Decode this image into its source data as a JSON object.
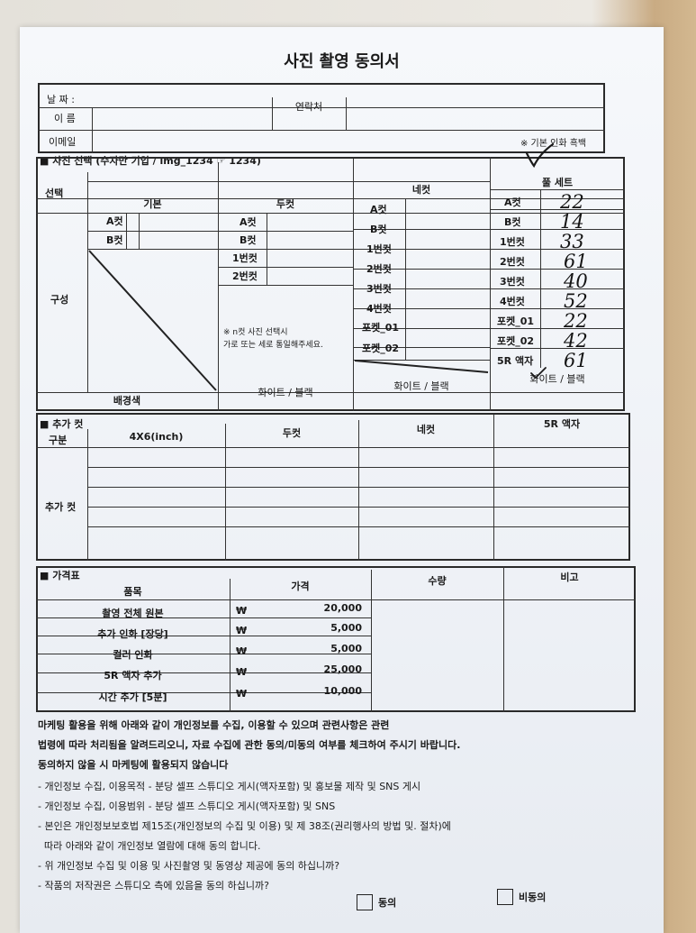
{
  "title": "사진 촬영 동의서",
  "info": {
    "date_label": "날 짜 :",
    "name_label": "이 름",
    "contact_label": "연락처",
    "email_label": "이메일"
  },
  "note_basic": "※ 기본 인화 흑백",
  "selection": {
    "section_title": "■ 사진 선택 (수자만 기입 / img_1234 ☞ 1234)",
    "select_label": "선택",
    "col_basic": "기본",
    "col_two": "두컷",
    "col_four": "네컷",
    "col_full": "풀 세트",
    "composition_label": "구성",
    "basic_items": [
      "A컷",
      "B컷"
    ],
    "two_items": [
      "A컷",
      "B컷",
      "1번컷",
      "2번컷"
    ],
    "two_note_line1": "※ n컷 사진 선택시",
    "two_note_line2": "가로 또는 세로 통일해주세요.",
    "four_items": [
      "A컷",
      "B컷",
      "1번컷",
      "2번컷",
      "3번컷",
      "4번컷",
      "포켓_01",
      "포켓_02"
    ],
    "full_items": [
      {
        "label": "A컷",
        "value": "22"
      },
      {
        "label": "B컷",
        "value": "14"
      },
      {
        "label": "1번컷",
        "value": "33"
      },
      {
        "label": "2번컷",
        "value": "61"
      },
      {
        "label": "3번컷",
        "value": "40"
      },
      {
        "label": "4번컷",
        "value": "52"
      },
      {
        "label": "포켓_01",
        "value": "22"
      },
      {
        "label": "포켓_02",
        "value": "42"
      },
      {
        "label": "5R 액자",
        "value": "61"
      }
    ],
    "bg_label": "배경색",
    "bg_two": "화이트 / 블랙",
    "bg_four": "화이트 / 블랙",
    "bg_full": "화이트 / 블랙"
  },
  "extra": {
    "section_title": "■ 추가 컷",
    "col_type": "구분",
    "col_4x6": "4X6(inch)",
    "col_two": "두컷",
    "col_four": "네컷",
    "col_5r": "5R 액자",
    "row_label": "추가 컷"
  },
  "price": {
    "section_title": "■ 가격표",
    "col_item": "품목",
    "col_price": "가격",
    "col_qty": "수량",
    "col_note": "비고",
    "currency": "₩",
    "rows": [
      {
        "item": "촬영 전체 원본",
        "price": "20,000"
      },
      {
        "item": "추가 인화 [장당]",
        "price": "5,000"
      },
      {
        "item": "컬러 인화",
        "price": "5,000"
      },
      {
        "item": "5R 액자 추가",
        "price": "25,000"
      },
      {
        "item": "시간 추가 [5분]",
        "price": "10,000"
      }
    ]
  },
  "consent": {
    "bold_lines": [
      "마케팅 활용을 위해 아래와 같이 개인정보를 수집, 이용할 수 있으며 관련사항은 관련",
      "법령에 따라 처리됨을 알려드리오니, 자료 수집에 관한 동의/미동의 여부를 체크하여 주시기 바랍니다.",
      "동의하지 않을 시 마케팅에 활용되지 않습니다"
    ],
    "lines": [
      "- 개인정보 수집, 이용목적 - 분당 셀프 스튜디오 게시(액자포함) 및 홍보물 제작 및 SNS 게시",
      "- 개인정보 수집, 이용범위 - 분당 셀프 스튜디오 게시(액자포함) 및 SNS",
      "- 본인은 개인정보보호법 제15조(개인정보의 수집 및 이용) 및 제 38조(권리행사의 방법 및. 절차)에",
      "  따라 아래와 같이 개인정보 열람에 대해 동의 합니다.",
      "- 위 개인정보 수집 및 이용 및 사진촬영 및 동영상 제공에 동의 하십니까?",
      "- 작품의 저작권은 스튜디오 측에 있음을 동의 하십니까?"
    ],
    "agree_label": "동의",
    "disagree_label": "비동의"
  }
}
